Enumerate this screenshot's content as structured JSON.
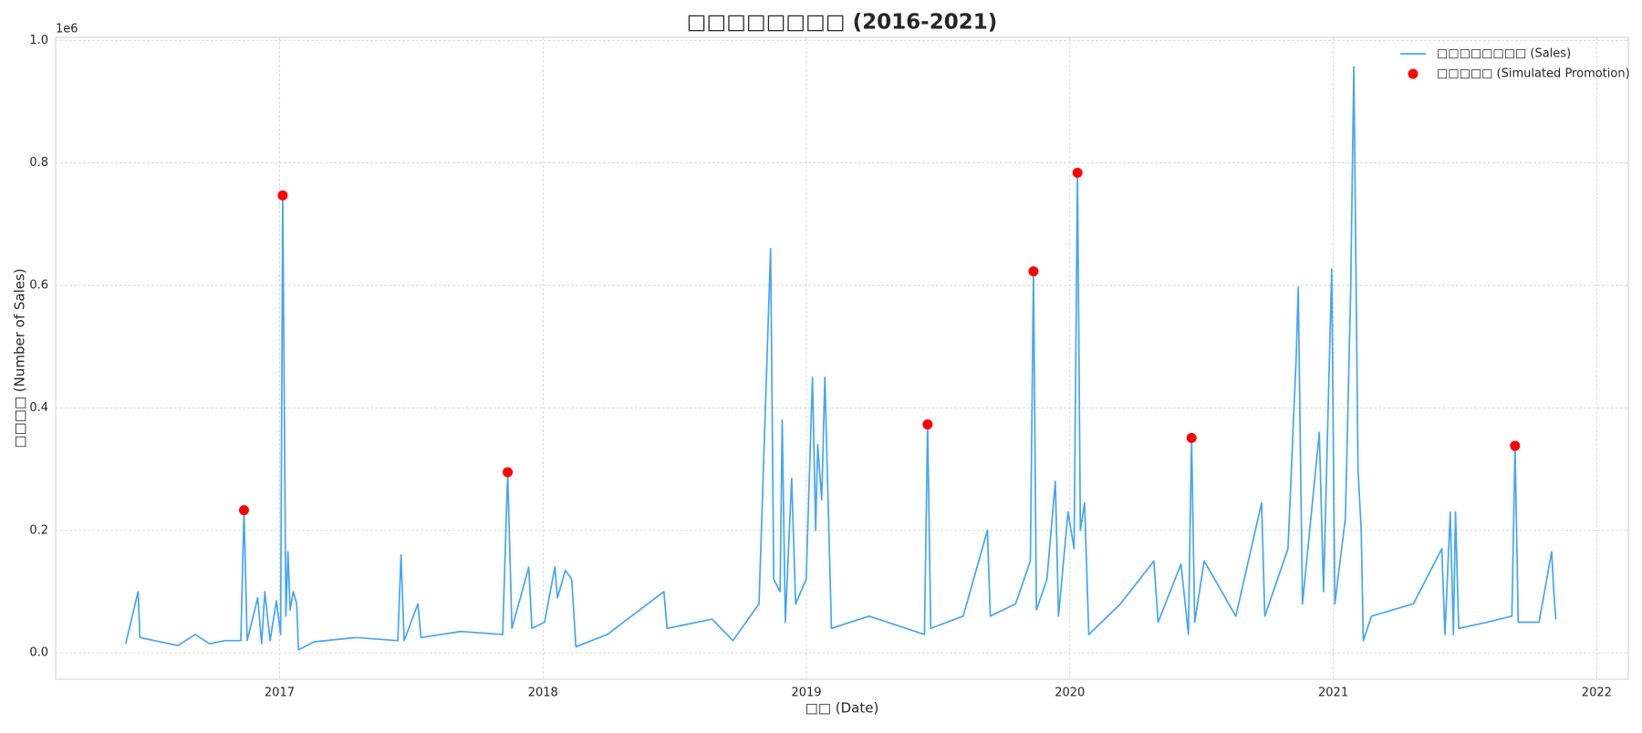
{
  "chart_data": {
    "type": "line",
    "title": "□□□□□□□□ (2016-2021)",
    "x_label": "□□ (Date)",
    "y_label": "□□□□ (Number of Sales)",
    "y_offset_label": "1e6",
    "xlim": [
      2016.15,
      2022.12
    ],
    "xticks": [
      2017,
      2018,
      2019,
      2020,
      2021,
      2022
    ],
    "ylim": [
      -0.043,
      1.005
    ],
    "yticks": [
      {
        "value": 0,
        "label": "0.0"
      },
      0.2,
      0.4,
      0.6,
      0.8,
      {
        "value": 1,
        "label": "1.0"
      }
    ],
    "grid": true,
    "legend": "upper right",
    "series": [
      {
        "name": "□□□□□□□□ (Sales)",
        "type": "line",
        "color": "#45a5f5",
        "x": [
          2016.416,
          2016.463,
          2016.47,
          2016.614,
          2016.68,
          2016.734,
          2016.793,
          2016.853,
          2016.865,
          2016.877,
          2016.917,
          2016.932,
          2016.944,
          2016.964,
          2016.988,
          2017.004,
          2017.012,
          2017.024,
          2017.032,
          2017.04,
          2017.052,
          2017.065,
          2017.072,
          2017.131,
          2017.29,
          2017.449,
          2017.461,
          2017.473,
          2017.525,
          2017.537,
          2017.688,
          2017.847,
          2017.866,
          2017.882,
          2017.946,
          2017.958,
          2018.006,
          2018.045,
          2018.055,
          2018.085,
          2018.109,
          2018.125,
          2018.244,
          2018.459,
          2018.471,
          2018.642,
          2018.721,
          2018.82,
          2018.864,
          2018.876,
          2018.9,
          2018.908,
          2018.92,
          2018.944,
          2018.959,
          2018.999,
          2019.023,
          2019.035,
          2019.043,
          2019.058,
          2019.07,
          2019.095,
          2019.238,
          2019.448,
          2019.46,
          2019.472,
          2019.595,
          2019.687,
          2019.698,
          2019.794,
          2019.85,
          2019.862,
          2019.873,
          2019.913,
          2019.945,
          2019.957,
          2019.993,
          2020.016,
          2020.029,
          2020.04,
          2020.056,
          2020.072,
          2020.192,
          2020.319,
          2020.335,
          2020.422,
          2020.45,
          2020.462,
          2020.474,
          2020.51,
          2020.63,
          2020.728,
          2020.74,
          2020.828,
          2020.859,
          2020.867,
          2020.883,
          2020.947,
          2020.963,
          2020.994,
          2021.006,
          2021.046,
          2021.066,
          2021.078,
          2021.094,
          2021.106,
          2021.114,
          2021.145,
          2021.304,
          2021.412,
          2021.424,
          2021.444,
          2021.456,
          2021.464,
          2021.476,
          2021.583,
          2021.678,
          2021.69,
          2021.702,
          2021.781,
          2021.829,
          2021.837,
          2021.845
        ],
        "values": [
          0.015,
          0.1,
          0.025,
          0.012,
          0.03,
          0.015,
          0.02,
          0.02,
          0.233,
          0.02,
          0.09,
          0.015,
          0.1,
          0.02,
          0.085,
          0.03,
          0.747,
          0.06,
          0.165,
          0.07,
          0.1,
          0.08,
          0.005,
          0.018,
          0.025,
          0.02,
          0.16,
          0.02,
          0.08,
          0.025,
          0.035,
          0.03,
          0.295,
          0.04,
          0.14,
          0.04,
          0.05,
          0.14,
          0.09,
          0.135,
          0.12,
          0.01,
          0.03,
          0.1,
          0.04,
          0.055,
          0.02,
          0.08,
          0.66,
          0.12,
          0.1,
          0.38,
          0.05,
          0.285,
          0.08,
          0.12,
          0.45,
          0.2,
          0.34,
          0.25,
          0.45,
          0.04,
          0.06,
          0.03,
          0.373,
          0.04,
          0.06,
          0.2,
          0.06,
          0.08,
          0.15,
          0.623,
          0.07,
          0.12,
          0.28,
          0.06,
          0.23,
          0.17,
          0.784,
          0.2,
          0.245,
          0.03,
          0.08,
          0.15,
          0.05,
          0.145,
          0.03,
          0.351,
          0.05,
          0.15,
          0.06,
          0.245,
          0.06,
          0.17,
          0.48,
          0.597,
          0.08,
          0.36,
          0.1,
          0.627,
          0.08,
          0.22,
          0.59,
          0.957,
          0.3,
          0.2,
          0.02,
          0.06,
          0.08,
          0.17,
          0.03,
          0.23,
          0.03,
          0.23,
          0.04,
          0.05,
          0.06,
          0.338,
          0.05,
          0.05,
          0.165,
          0.1,
          0.055
        ]
      },
      {
        "name": "□□□□□ (Simulated Promotion)",
        "type": "scatter",
        "color": "#ff0000",
        "x": [
          2016.865,
          2017.012,
          2017.866,
          2019.46,
          2019.862,
          2020.029,
          2020.462,
          2021.69
        ],
        "values": [
          0.233,
          0.747,
          0.295,
          0.373,
          0.623,
          0.784,
          0.351,
          0.338
        ]
      }
    ]
  }
}
